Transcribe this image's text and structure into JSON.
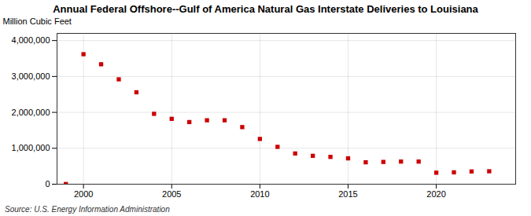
{
  "chart_data": {
    "type": "scatter",
    "title": "Annual Federal Offshore--Gulf of America Natural Gas Interstate Deliveries to Louisiana",
    "ylabel": "Million Cubic Feet",
    "source": "Source: U.S. Energy Information Administration",
    "x": [
      1999,
      2000,
      2001,
      2002,
      2003,
      2004,
      2005,
      2006,
      2007,
      2008,
      2009,
      2010,
      2011,
      2012,
      2013,
      2014,
      2015,
      2016,
      2017,
      2018,
      2019,
      2020,
      2021,
      2022,
      2023
    ],
    "values": [
      5000,
      3620000,
      3340000,
      2920000,
      2560000,
      1960000,
      1820000,
      1730000,
      1780000,
      1780000,
      1590000,
      1260000,
      1040000,
      855000,
      790000,
      760000,
      720000,
      610000,
      620000,
      630000,
      630000,
      320000,
      330000,
      355000,
      360000
    ],
    "color": "#cc0000",
    "marker": "square",
    "xlim": [
      1998.5,
      2024.5
    ],
    "ylim": [
      0,
      4200000
    ],
    "xticks": [
      2000,
      2005,
      2010,
      2015,
      2020
    ],
    "yticks": [
      0,
      {
        "value": 1000000,
        "label": "1,000,000"
      },
      {
        "value": 2000000,
        "label": "2,000,000"
      },
      {
        "value": 3000000,
        "label": "3,000,000"
      },
      {
        "value": 4000000,
        "label": "4,000,000"
      }
    ],
    "grid": true
  }
}
